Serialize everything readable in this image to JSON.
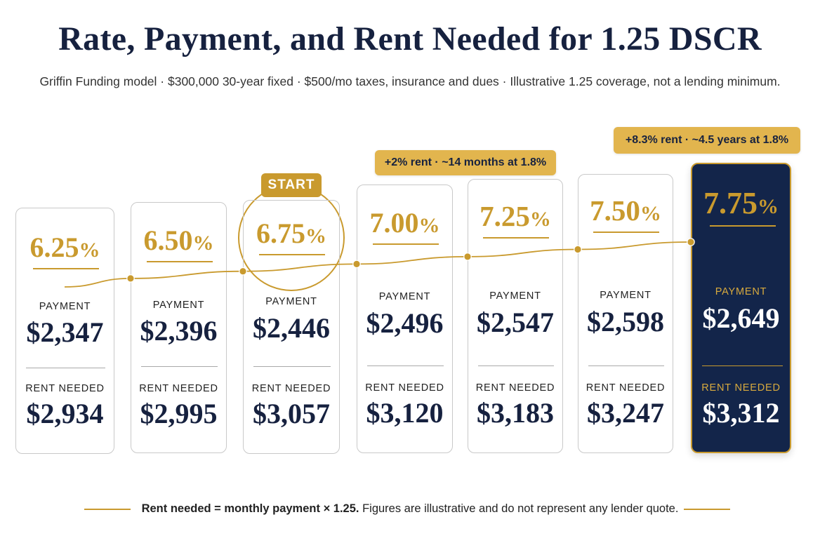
{
  "title": "Rate, Payment, and Rent Needed for 1.25 DSCR",
  "subtitle": "Griffin Funding model · $300,000 30-year fixed · $500/mo taxes, insurance and dues · Illustrative 1.25 coverage, not a lending minimum.",
  "start_label": "START",
  "callouts": {
    "two_percent": "+2% rent · ~14 months at 1.8%",
    "eight_percent": "+8.3% rent · ~4.5 years at 1.8%"
  },
  "footnote": {
    "bold": "Rent needed = monthly payment × 1.25.",
    "rest": " Figures are illustrative and do not represent any lender quote."
  },
  "colors": {
    "navy": "#13254a",
    "gold": "#c99a2e",
    "callout": "#e2b54e"
  },
  "chart_data": {
    "type": "table",
    "payment_label": "PAYMENT",
    "rent_label": "RENT NEEDED",
    "rates": [
      "6.25",
      "6.50",
      "6.75",
      "7.00",
      "7.25",
      "7.50",
      "7.75"
    ],
    "rate_unit": "%",
    "payments": [
      "$2,347",
      "$2,396",
      "$2,446",
      "$2,496",
      "$2,547",
      "$2,598",
      "$2,649"
    ],
    "rents_needed": [
      "$2,934",
      "$2,995",
      "$3,057",
      "$3,120",
      "$3,183",
      "$3,247",
      "$3,312"
    ],
    "start_index": 2,
    "highlight_index": 6,
    "trend_line": true
  }
}
